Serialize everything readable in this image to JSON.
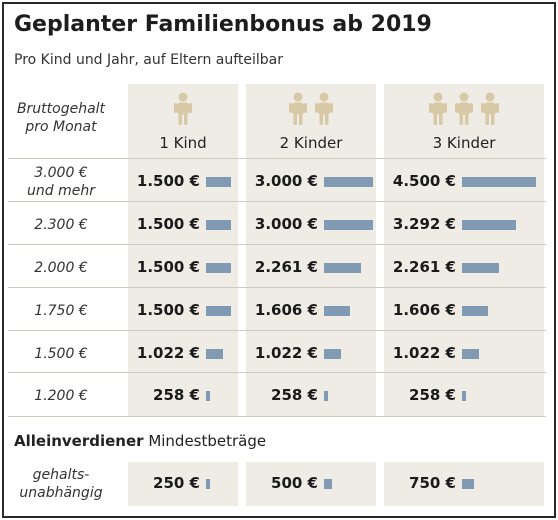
{
  "title": "Geplanter Familienbonus ab 2019",
  "subtitle": "Pro Kind und Jahr, auf Eltern aufteilbar",
  "row_header": "Bruttogehalt\npro Monat",
  "person_color": "#d8c9a6",
  "bar_color": "#7f9ab2",
  "section": {
    "bold": "Alleinverdiener",
    "rest": " Mindestbeträge"
  },
  "chart_data": {
    "type": "table",
    "title": "Geplanter Familienbonus ab 2019",
    "subtitle": "Pro Kind und Jahr, auf Eltern aufteilbar",
    "columns": [
      "1 Kind",
      "2 Kinder",
      "3 Kinder"
    ],
    "rows": [
      {
        "label": "3.000 €\nund mehr",
        "values": [
          "1.500 €",
          "3.000 €",
          "4.500 €"
        ],
        "amounts": [
          1500,
          3000,
          4500
        ]
      },
      {
        "label": "2.300 €",
        "values": [
          "1.500 €",
          "3.000 €",
          "3.292 €"
        ],
        "amounts": [
          1500,
          3000,
          3292
        ]
      },
      {
        "label": "2.000 €",
        "values": [
          "1.500 €",
          "2.261 €",
          "2.261 €"
        ],
        "amounts": [
          1500,
          2261,
          2261
        ]
      },
      {
        "label": "1.750 €",
        "values": [
          "1.500 €",
          "1.606 €",
          "1.606 €"
        ],
        "amounts": [
          1500,
          1606,
          1606
        ]
      },
      {
        "label": "1.500 €",
        "values": [
          "1.022 €",
          "1.022 €",
          "1.022 €"
        ],
        "amounts": [
          1022,
          1022,
          1022
        ]
      },
      {
        "label": "1.200 €",
        "values": [
          "258 €",
          "258 €",
          "258 €"
        ],
        "amounts": [
          258,
          258,
          258
        ]
      }
    ],
    "minimum": {
      "label": "gehalts-\nunabhängig",
      "values": [
        "250 €",
        "500 €",
        "750 €"
      ],
      "amounts": [
        250,
        500,
        750
      ]
    }
  }
}
